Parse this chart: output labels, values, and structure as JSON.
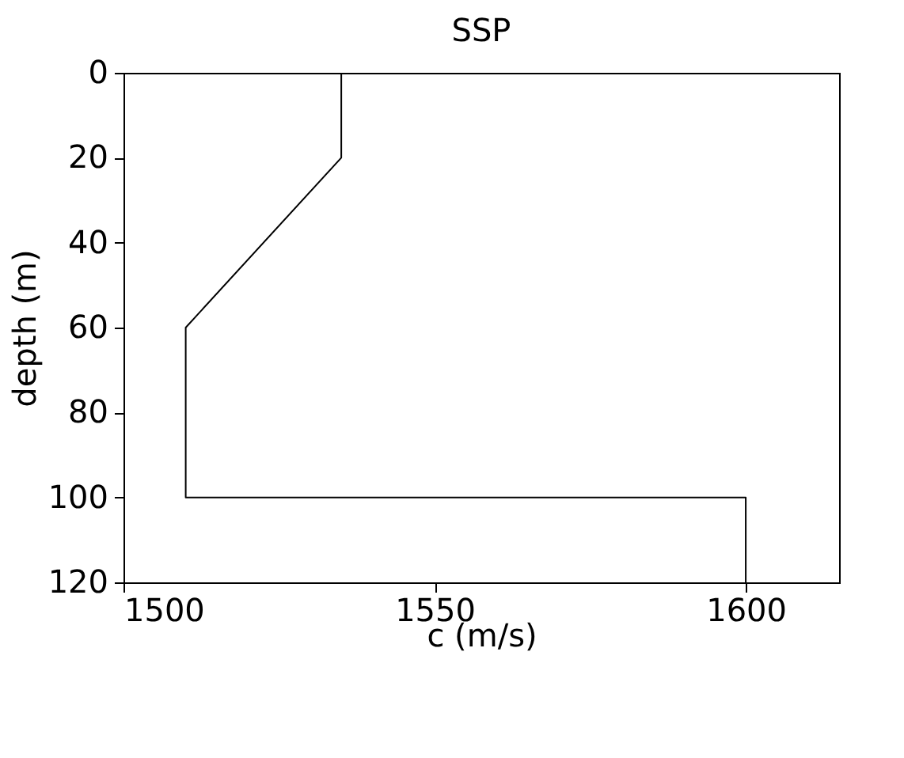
{
  "chart_data": {
    "type": "line",
    "title": "SSP",
    "xlabel": "c (m/s)",
    "ylabel": "depth (m)",
    "x": [
      1535,
      1535,
      1510,
      1510,
      1600,
      1600
    ],
    "series": [
      {
        "color": "#000000",
        "values": [
          0,
          20,
          60,
          100,
          100,
          120
        ]
      }
    ],
    "xlim": [
      1500,
      1615
    ],
    "xticks": [
      1500,
      1550,
      1600
    ],
    "ylim": [
      120,
      0
    ],
    "yticks": [
      0,
      20,
      40,
      60,
      80,
      100,
      120
    ],
    "grid": false,
    "marker": "none",
    "line_style": "solid"
  }
}
